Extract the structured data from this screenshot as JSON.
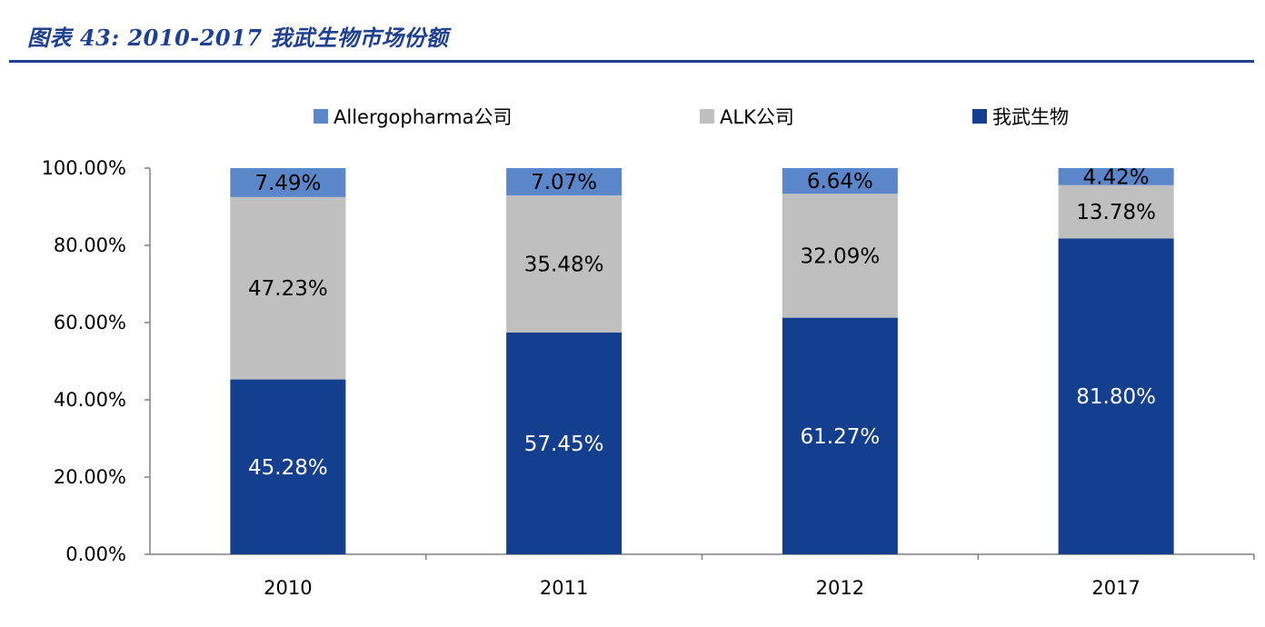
{
  "title": "图表 43:  2010-2017 我武生物市场份额",
  "colors": {
    "title": "#1f3f8f",
    "series_top": "#5b86c9",
    "series_mid": "#bfbfbf",
    "series_bottom": "#143f8f"
  },
  "chart_data": {
    "type": "bar",
    "stacked": true,
    "categories": [
      "2010",
      "2011",
      "2012",
      "2017"
    ],
    "series": [
      {
        "name": "我武生物",
        "values": [
          45.28,
          57.45,
          61.27,
          81.8
        ],
        "labels": [
          "45.28%",
          "57.45%",
          "61.27%",
          "81.80%"
        ],
        "color": "#143f8f",
        "label_color": "#ffffff"
      },
      {
        "name": "ALK公司",
        "values": [
          47.23,
          35.48,
          32.09,
          13.78
        ],
        "labels": [
          "47.23%",
          "35.48%",
          "32.09%",
          "13.78%"
        ],
        "color": "#bfbfbf",
        "label_color": "#000000"
      },
      {
        "name": "Allergopharma公司",
        "values": [
          7.49,
          7.07,
          6.64,
          4.42
        ],
        "labels": [
          "7.49%",
          "7.07%",
          "6.64%",
          "4.42%"
        ],
        "color": "#5b86c9",
        "label_color": "#000000"
      }
    ],
    "legend_order": [
      "Allergopharma公司",
      "ALK公司",
      "我武生物"
    ],
    "legend_position": "top",
    "ylim": [
      0,
      100
    ],
    "yticks": [
      0,
      20,
      40,
      60,
      80,
      100
    ],
    "ytick_labels": [
      "0.00%",
      "20.00%",
      "40.00%",
      "60.00%",
      "80.00%",
      "100.00%"
    ],
    "xlabel": "",
    "ylabel": "",
    "grid": false
  }
}
